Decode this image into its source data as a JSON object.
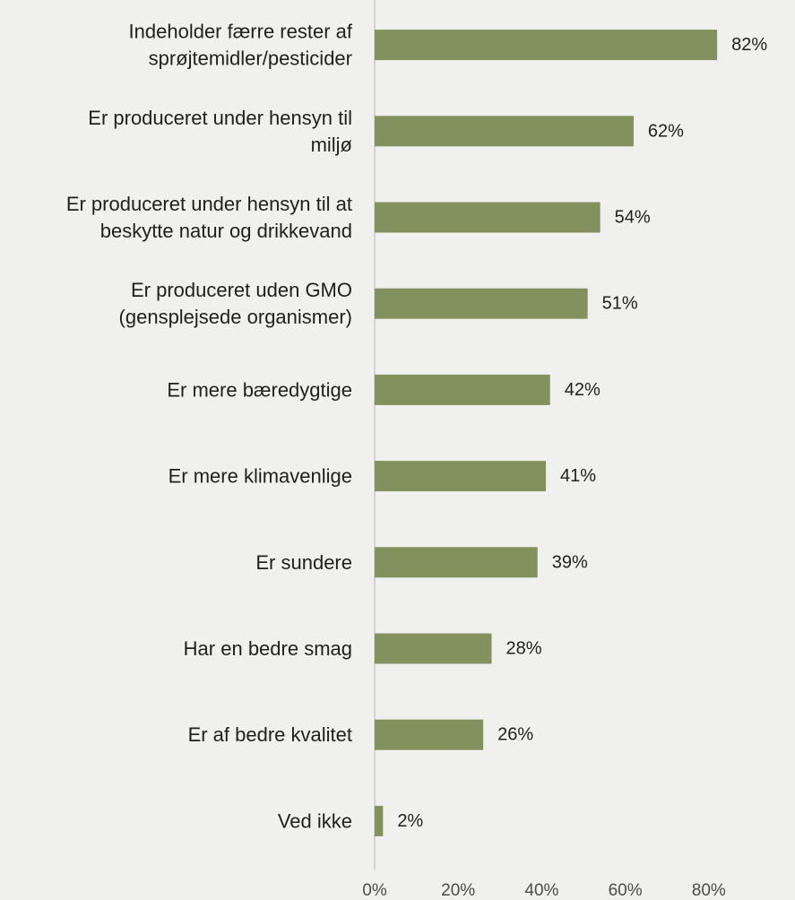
{
  "chart_data": {
    "type": "bar",
    "orientation": "horizontal",
    "title": "",
    "xlabel": "",
    "ylabel": "",
    "categories": [
      [
        "Indeholder færre rester af",
        "sprøjtemidler/pesticider"
      ],
      [
        "Er produceret under hensyn til",
        "miljø"
      ],
      [
        "Er produceret under hensyn til at",
        "beskytte natur og drikkevand"
      ],
      [
        "Er produceret uden GMO",
        "(gensplejsede organismer)"
      ],
      [
        "Er mere bæredygtige"
      ],
      [
        "Er mere klimavenlige"
      ],
      [
        "Er sundere"
      ],
      [
        "Har en bedre smag"
      ],
      [
        "Er af bedre kvalitet"
      ],
      [
        "Ved ikke"
      ]
    ],
    "values": [
      82,
      62,
      54,
      51,
      42,
      41,
      39,
      28,
      26,
      2
    ],
    "value_labels": [
      "82%",
      "62%",
      "54%",
      "51%",
      "42%",
      "41%",
      "39%",
      "28%",
      "26%",
      "2%"
    ],
    "xlim": [
      0,
      80
    ],
    "x_ticks": [
      "0%",
      "20%",
      "40%",
      "60%",
      "80%"
    ],
    "grid": false,
    "legend": "none",
    "bar_color": "#82915e",
    "axis_color": "#c9c9c9"
  }
}
